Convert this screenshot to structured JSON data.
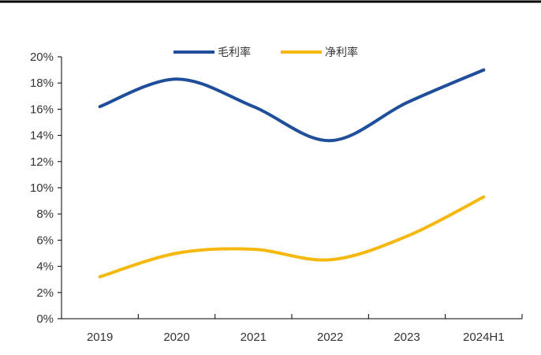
{
  "chart_data": {
    "type": "line",
    "categories": [
      "2019",
      "2020",
      "2021",
      "2022",
      "2023",
      "2024H1"
    ],
    "series": [
      {
        "name": "毛利率",
        "values": [
          16.2,
          18.3,
          16.2,
          13.6,
          16.5,
          19.0
        ],
        "color": "#1f4e9a"
      },
      {
        "name": "净利率",
        "values": [
          3.2,
          5.0,
          5.3,
          4.5,
          6.3,
          9.3
        ],
        "color": "#f5b80f"
      }
    ],
    "y_ticks": [
      "0%",
      "2%",
      "4%",
      "6%",
      "8%",
      "10%",
      "12%",
      "14%",
      "16%",
      "18%",
      "20%"
    ],
    "ylim": [
      0,
      20
    ],
    "smooth": true,
    "grid": false,
    "legend_position": "top-center"
  }
}
